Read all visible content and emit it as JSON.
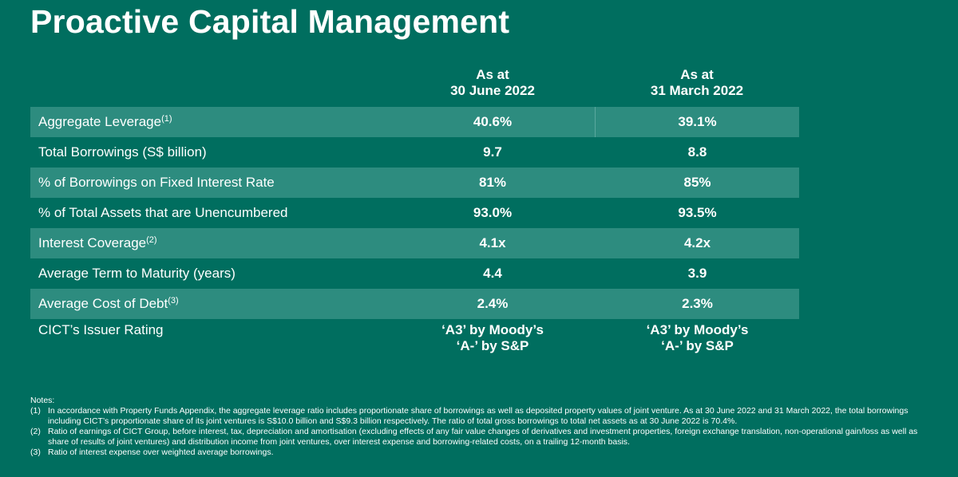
{
  "title": "Proactive Capital Management",
  "columns": [
    {
      "line1": "As at",
      "line2": "30 June 2022"
    },
    {
      "line1": "As at",
      "line2": "31 March 2022"
    }
  ],
  "rows": [
    {
      "label": "Aggregate Leverage",
      "sup": "(1)",
      "jun": "40.6%",
      "mar": "39.1%"
    },
    {
      "label": "Total Borrowings (S$ billion)",
      "sup": "",
      "jun": "9.7",
      "mar": "8.8"
    },
    {
      "label": "% of Borrowings on Fixed Interest Rate",
      "sup": "",
      "jun": "81%",
      "mar": "85%"
    },
    {
      "label": "% of Total Assets that are Unencumbered",
      "sup": "",
      "jun": "93.0%",
      "mar": "93.5%"
    },
    {
      "label": "Interest Coverage",
      "sup": "(2)",
      "jun": "4.1x",
      "mar": "4.2x"
    },
    {
      "label": "Average Term to Maturity (years)",
      "sup": "",
      "jun": "4.4",
      "mar": "3.9"
    },
    {
      "label": "Average Cost of Debt",
      "sup": "(3)",
      "jun": "2.4%",
      "mar": "2.3%"
    }
  ],
  "rating": {
    "label": "CICT’s Issuer Rating",
    "jun": [
      "‘A3’ by Moody’s",
      "‘A-’ by S&P"
    ],
    "mar": [
      "‘A3’ by Moody’s",
      "‘A-’ by S&P"
    ]
  },
  "notes": {
    "heading": "Notes:",
    "items": [
      {
        "num": "(1)",
        "text": "In accordance with Property Funds Appendix, the aggregate leverage ratio includes proportionate share of borrowings as well as deposited property values of joint venture. As at 30 June 2022 and 31 March 2022, the total borrowings including CICT’s proportionate share of its joint ventures is S$10.0 billion and S$9.3 billion respectively. The ratio of total gross borrowings to total net assets as at 30 June 2022 is 70.4%."
      },
      {
        "num": "(2)",
        "text": "Ratio of earnings of CICT Group, before interest, tax, depreciation and amortisation (excluding effects of any fair value changes of derivatives and investment properties, foreign exchange translation, non-operational gain/loss as well as share of results of joint ventures) and distribution income from joint ventures, over interest expense and borrowing-related costs, on a trailing 12-month basis."
      },
      {
        "num": "(3)",
        "text": "Ratio of interest expense over weighted average borrowings."
      }
    ]
  },
  "colors": {
    "background": "#006e5f",
    "row_shade": "#2d8c7f",
    "text": "#ffffff"
  }
}
